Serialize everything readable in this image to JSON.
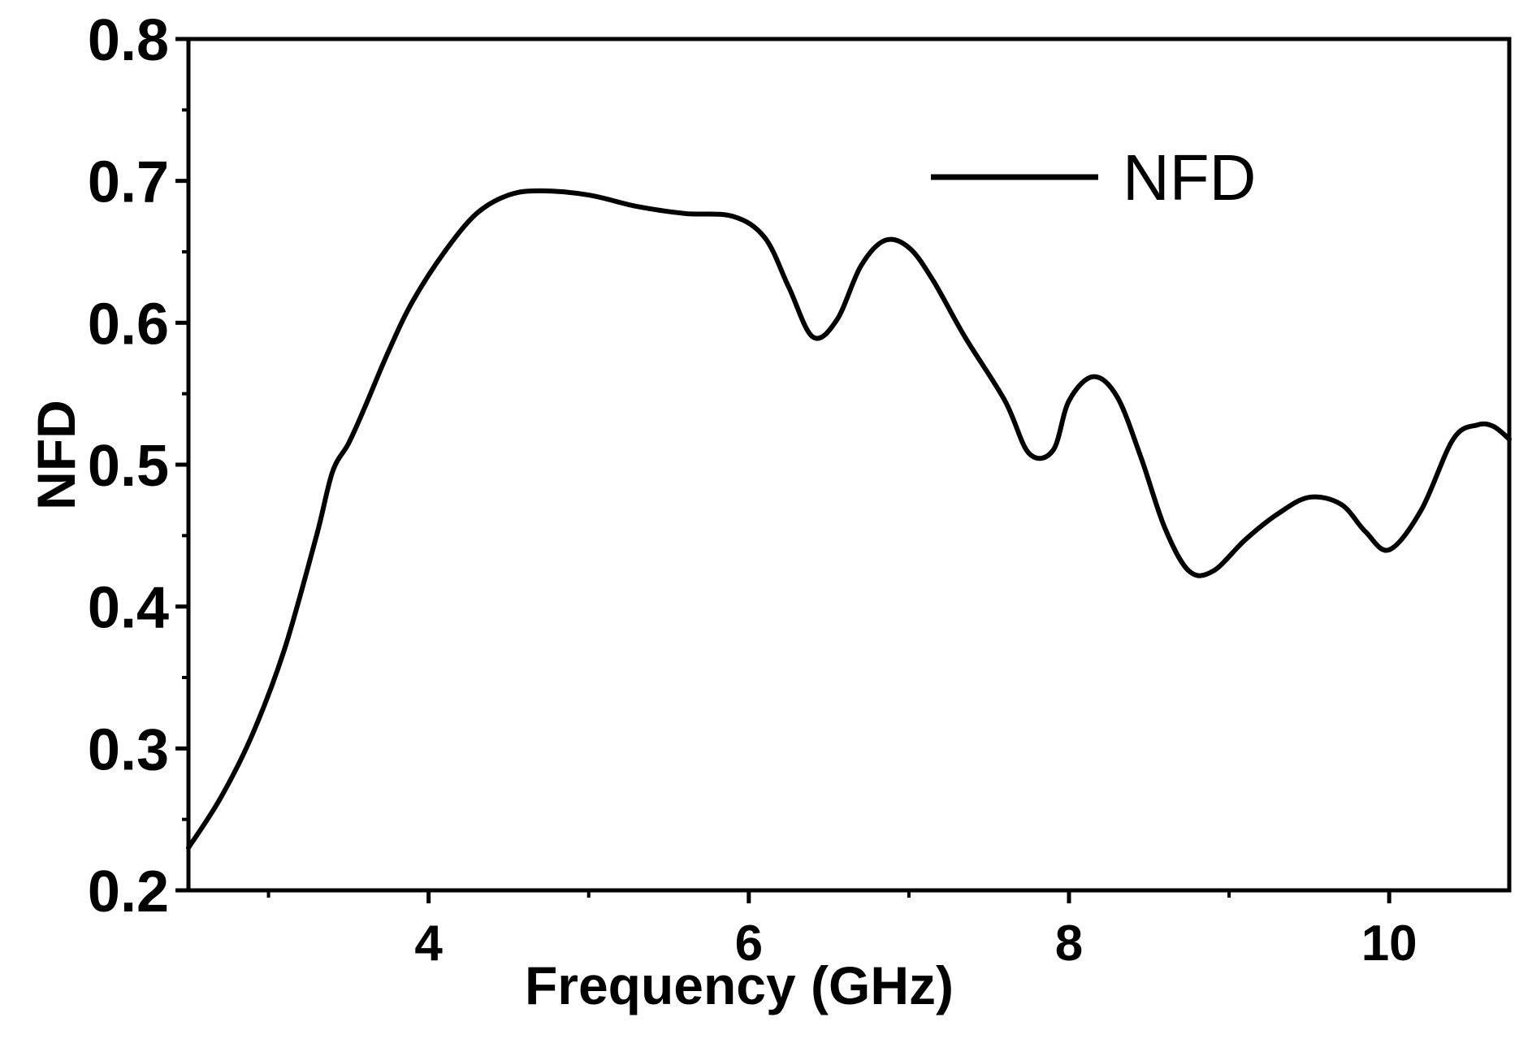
{
  "chart_data": {
    "type": "line",
    "title": "",
    "xlabel": "Frequency (GHz)",
    "ylabel": "NFD",
    "xlim": [
      2.5,
      10.75
    ],
    "ylim": [
      0.2,
      0.8
    ],
    "x_ticks": [
      4,
      6,
      8,
      10
    ],
    "x_tick_labels": [
      "4",
      "6",
      "8",
      "10"
    ],
    "y_ticks": [
      0.2,
      0.3,
      0.4,
      0.5,
      0.6,
      0.7,
      0.8
    ],
    "y_tick_labels": [
      "0.2",
      "0.3",
      "0.4",
      "0.5",
      "0.6",
      "0.7",
      "0.8"
    ],
    "grid": false,
    "legend": {
      "position": "top-right"
    },
    "series": [
      {
        "name": "NFD",
        "color": "#000000",
        "x": [
          2.5,
          2.7,
          2.9,
          3.1,
          3.3,
          3.4,
          3.5,
          3.6,
          3.75,
          3.9,
          4.1,
          4.3,
          4.5,
          4.7,
          5.0,
          5.3,
          5.6,
          5.9,
          6.1,
          6.25,
          6.4,
          6.55,
          6.7,
          6.85,
          7.0,
          7.15,
          7.35,
          7.6,
          7.75,
          7.9,
          8.0,
          8.15,
          8.3,
          8.45,
          8.6,
          8.75,
          8.9,
          9.1,
          9.3,
          9.5,
          9.7,
          9.85,
          10.0,
          10.2,
          10.4,
          10.55,
          10.65,
          10.75
        ],
        "y": [
          0.23,
          0.265,
          0.31,
          0.37,
          0.45,
          0.495,
          0.515,
          0.54,
          0.58,
          0.615,
          0.65,
          0.677,
          0.69,
          0.693,
          0.69,
          0.682,
          0.677,
          0.675,
          0.66,
          0.625,
          0.59,
          0.602,
          0.64,
          0.658,
          0.653,
          0.63,
          0.59,
          0.545,
          0.508,
          0.51,
          0.545,
          0.562,
          0.548,
          0.505,
          0.455,
          0.425,
          0.425,
          0.447,
          0.465,
          0.477,
          0.472,
          0.453,
          0.44,
          0.468,
          0.518,
          0.528,
          0.527,
          0.518
        ]
      }
    ]
  }
}
